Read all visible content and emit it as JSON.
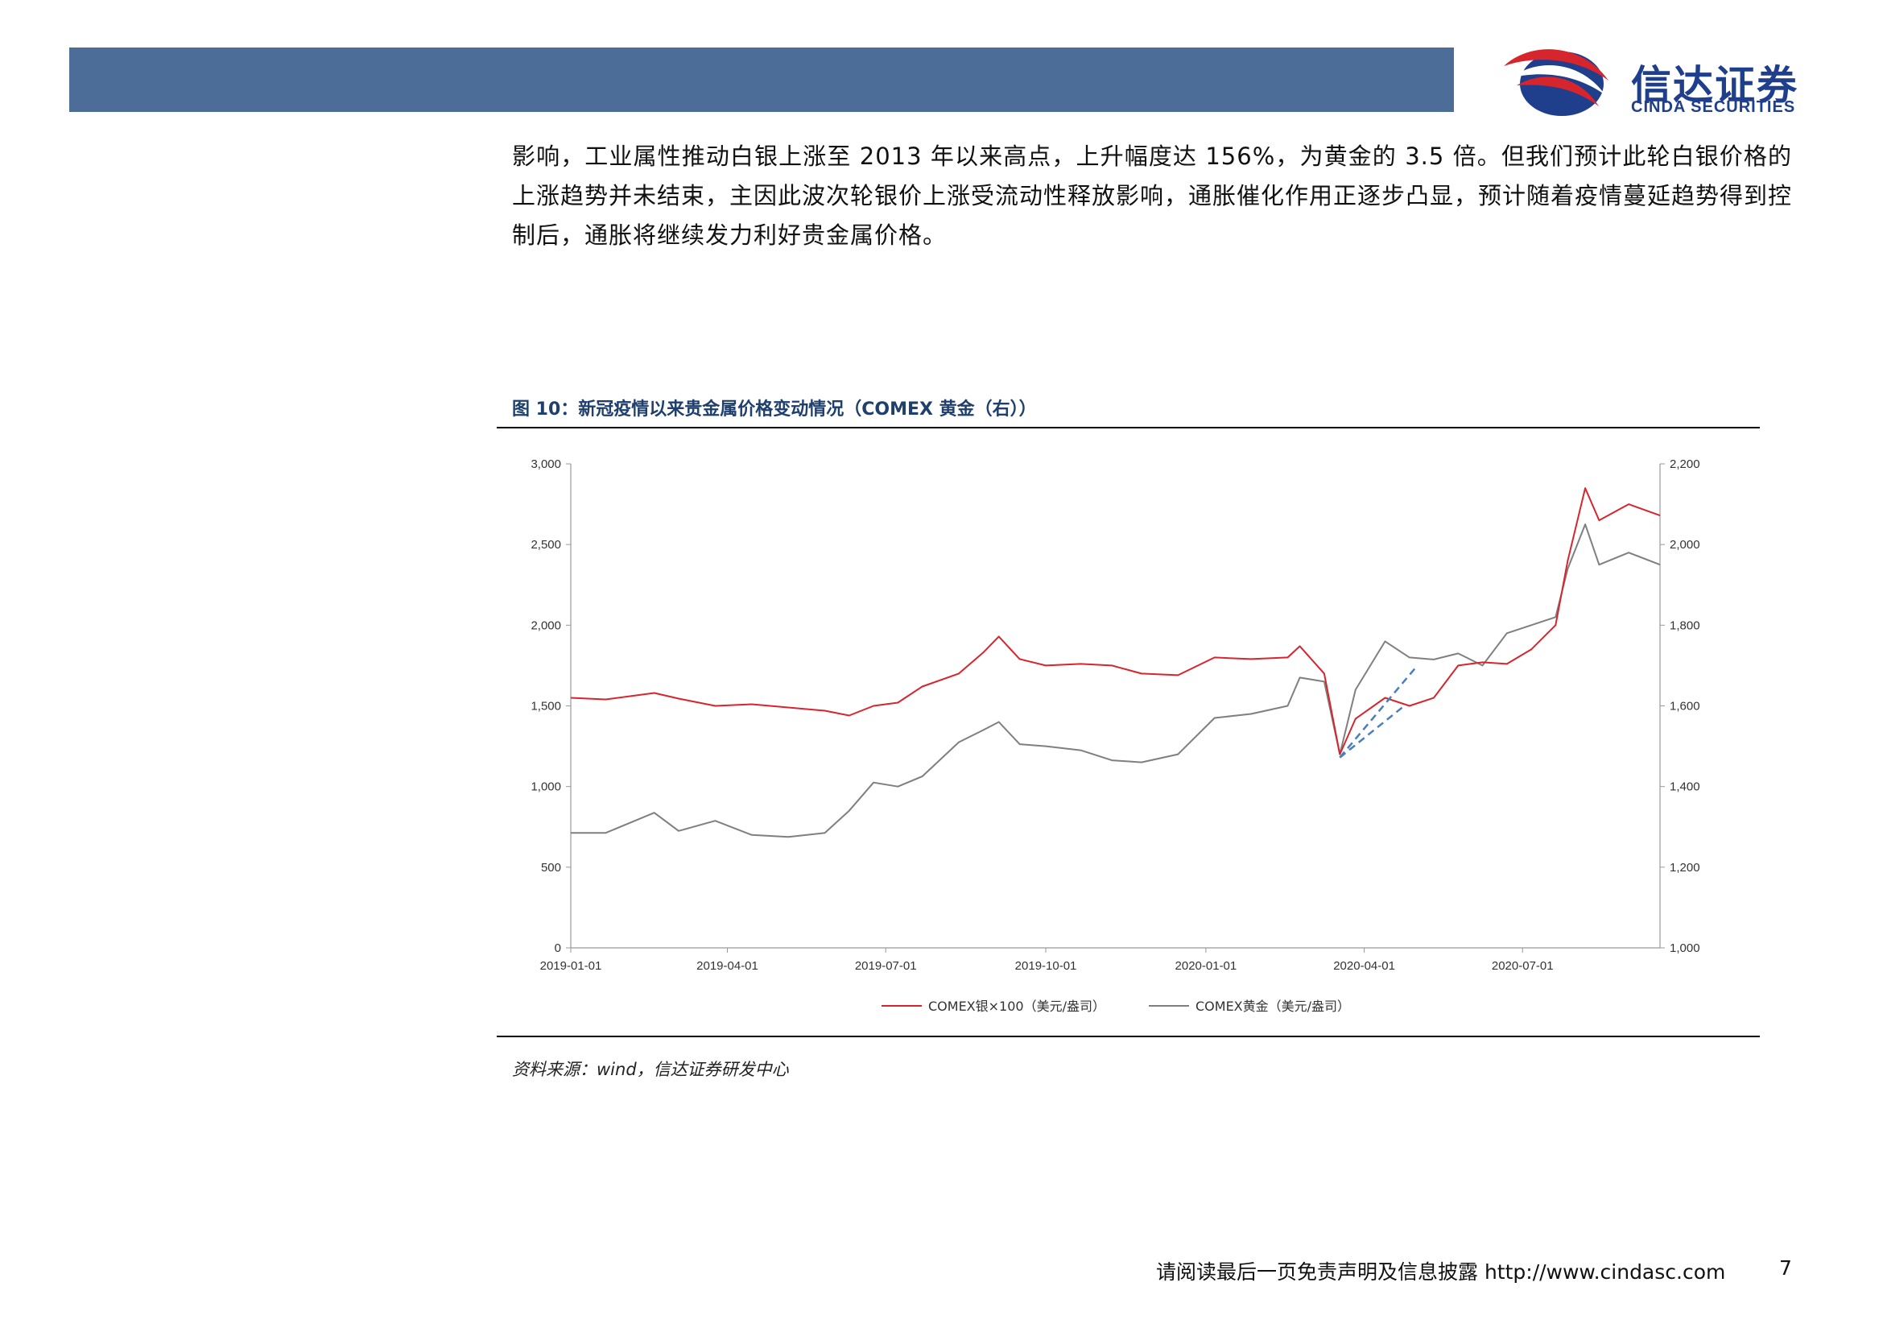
{
  "header": {
    "logo_cn": "信达证券",
    "logo_en": "CINDA SECURITIES",
    "colors": {
      "bar": "#4b6d97",
      "logo_red": "#d7252e",
      "logo_blue": "#1f3f8c"
    }
  },
  "paragraph": "影响，工业属性推动白银上涨至 2013 年以来高点，上升幅度达 156%，为黄金的 3.5 倍。但我们预计此轮白银价格的上涨趋势并未结束，主因此波次轮银价上涨受流动性释放影响，通胀催化作用正逐步凸显，预计随着疫情蔓延趋势得到控制后，通胀将继续发力利好贵金属价格。",
  "figure": {
    "title": "图 10：新冠疫情以来贵金属价格变动情况（COMEX 黄金（右））",
    "source": "资料来源：wind，信达证券研发中心"
  },
  "footer": {
    "text": "请阅读最后一页免责声明及信息披露 http://www.cindasc.com",
    "page": "7"
  },
  "chart_data": {
    "type": "line",
    "x_tick_labels": [
      "2019-01-01",
      "2019-04-01",
      "2019-07-01",
      "2019-10-01",
      "2020-01-01",
      "2020-04-01",
      "2020-07-01"
    ],
    "x_range": [
      "2019-01-01",
      "2020-09-18"
    ],
    "y_left": {
      "ticks": [
        "0",
        "500",
        "1,000",
        "1,500",
        "2,000",
        "2,500",
        "3,000"
      ],
      "ylim": [
        0,
        3000
      ]
    },
    "y_right": {
      "ticks": [
        "1,000",
        "1,200",
        "1,400",
        "1,600",
        "1,800",
        "2,000",
        "2,200"
      ],
      "ylim": [
        1000,
        2200
      ]
    },
    "series": [
      {
        "name": "COMEX银×100（美元/盎司）",
        "axis": "left",
        "color": "#d7252e",
        "points": [
          [
            "2019-01-01",
            1550
          ],
          [
            "2019-01-21",
            1540
          ],
          [
            "2019-02-18",
            1580
          ],
          [
            "2019-03-04",
            1545
          ],
          [
            "2019-03-25",
            1500
          ],
          [
            "2019-04-15",
            1510
          ],
          [
            "2019-05-06",
            1490
          ],
          [
            "2019-05-27",
            1470
          ],
          [
            "2019-06-10",
            1440
          ],
          [
            "2019-06-24",
            1500
          ],
          [
            "2019-07-08",
            1520
          ],
          [
            "2019-07-22",
            1620
          ],
          [
            "2019-08-12",
            1700
          ],
          [
            "2019-08-26",
            1830
          ],
          [
            "2019-09-04",
            1930
          ],
          [
            "2019-09-16",
            1790
          ],
          [
            "2019-10-01",
            1750
          ],
          [
            "2019-10-21",
            1760
          ],
          [
            "2019-11-08",
            1750
          ],
          [
            "2019-11-25",
            1700
          ],
          [
            "2019-12-16",
            1690
          ],
          [
            "2020-01-06",
            1800
          ],
          [
            "2020-01-27",
            1790
          ],
          [
            "2020-02-17",
            1800
          ],
          [
            "2020-02-24",
            1870
          ],
          [
            "2020-03-09",
            1700
          ],
          [
            "2020-03-18",
            1200
          ],
          [
            "2020-03-27",
            1420
          ],
          [
            "2020-04-13",
            1550
          ],
          [
            "2020-04-27",
            1500
          ],
          [
            "2020-05-11",
            1550
          ],
          [
            "2020-05-25",
            1750
          ],
          [
            "2020-06-08",
            1770
          ],
          [
            "2020-06-22",
            1760
          ],
          [
            "2020-07-06",
            1850
          ],
          [
            "2020-07-20",
            2000
          ],
          [
            "2020-07-27",
            2400
          ],
          [
            "2020-08-06",
            2850
          ],
          [
            "2020-08-14",
            2650
          ],
          [
            "2020-08-31",
            2750
          ],
          [
            "2020-09-18",
            2680
          ]
        ]
      },
      {
        "name": "COMEX黄金（美元/盎司）",
        "axis": "right",
        "color": "#7f7f7f",
        "points": [
          [
            "2019-01-01",
            1285
          ],
          [
            "2019-01-21",
            1285
          ],
          [
            "2019-02-18",
            1335
          ],
          [
            "2019-03-04",
            1290
          ],
          [
            "2019-03-25",
            1315
          ],
          [
            "2019-04-15",
            1280
          ],
          [
            "2019-05-06",
            1275
          ],
          [
            "2019-05-27",
            1285
          ],
          [
            "2019-06-10",
            1340
          ],
          [
            "2019-06-24",
            1410
          ],
          [
            "2019-07-08",
            1400
          ],
          [
            "2019-07-22",
            1425
          ],
          [
            "2019-08-12",
            1510
          ],
          [
            "2019-08-26",
            1540
          ],
          [
            "2019-09-04",
            1560
          ],
          [
            "2019-09-16",
            1505
          ],
          [
            "2019-10-01",
            1500
          ],
          [
            "2019-10-21",
            1490
          ],
          [
            "2019-11-08",
            1465
          ],
          [
            "2019-11-25",
            1460
          ],
          [
            "2019-12-16",
            1480
          ],
          [
            "2020-01-06",
            1570
          ],
          [
            "2020-01-27",
            1580
          ],
          [
            "2020-02-17",
            1600
          ],
          [
            "2020-02-24",
            1670
          ],
          [
            "2020-03-09",
            1660
          ],
          [
            "2020-03-18",
            1480
          ],
          [
            "2020-03-27",
            1640
          ],
          [
            "2020-04-13",
            1760
          ],
          [
            "2020-04-27",
            1720
          ],
          [
            "2020-05-11",
            1715
          ],
          [
            "2020-05-25",
            1730
          ],
          [
            "2020-06-08",
            1700
          ],
          [
            "2020-06-22",
            1780
          ],
          [
            "2020-07-06",
            1800
          ],
          [
            "2020-07-20",
            1820
          ],
          [
            "2020-07-27",
            1940
          ],
          [
            "2020-08-06",
            2050
          ],
          [
            "2020-08-14",
            1950
          ],
          [
            "2020-08-31",
            1980
          ],
          [
            "2020-09-18",
            1950
          ]
        ]
      }
    ],
    "annotations": [
      {
        "type": "dashed-trend",
        "color": "#4a7ebb",
        "from": [
          "2020-03-18",
          1180
        ],
        "to": [
          "2020-04-24",
          1500
        ]
      },
      {
        "type": "dashed-trend",
        "color": "#4a7ebb",
        "from": [
          "2020-03-18",
          1180
        ],
        "to": [
          "2020-04-30",
          1730
        ]
      }
    ],
    "legend": {
      "placement": "bottom-center"
    },
    "grid": false
  }
}
